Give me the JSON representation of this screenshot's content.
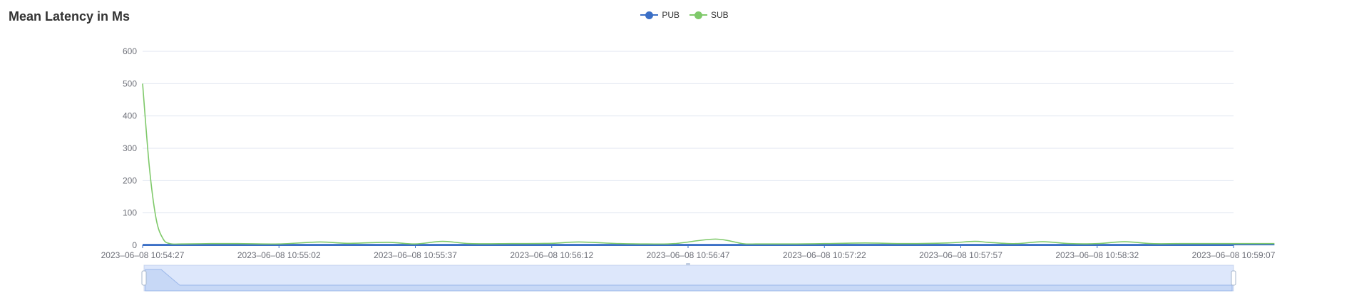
{
  "panel": {
    "title": "Mean Latency in Ms"
  },
  "colors": {
    "pub": "#3b6fc6",
    "sub": "#7fc96a",
    "grid": "#e0e6f1",
    "axis": "#3b6fc6"
  },
  "chart_data": {
    "type": "line",
    "ylim": [
      0,
      600
    ],
    "yticks": [
      0,
      100,
      200,
      300,
      400,
      500,
      600
    ],
    "x_tick_labels": [
      "2023–06–08 10:54:27",
      "2023–06–08 10:55:02",
      "2023–06–08 10:55:37",
      "2023–06–08 10:56:12",
      "2023–06–08 10:56:47",
      "2023–06–08 10:57:22",
      "2023–06–08 10:57:57",
      "2023–06–08 10:58:32",
      "2023–06–08 10:59:07"
    ],
    "legend_position": "top-center",
    "grid": true,
    "series": [
      {
        "name": "PUB",
        "x": [
          0,
          4.5,
          8.3
        ],
        "values": [
          2,
          2,
          2
        ]
      },
      {
        "name": "SUB",
        "x": [
          0,
          0.05,
          0.1,
          0.15,
          0.2,
          0.3,
          0.5,
          0.7,
          1.0,
          1.3,
          1.5,
          1.8,
          2.0,
          2.2,
          2.4,
          2.7,
          3.0,
          3.2,
          3.5,
          3.7,
          3.9,
          4.2,
          4.4,
          4.5,
          4.6,
          4.8,
          5.0,
          5.3,
          5.6,
          5.9,
          6.1,
          6.2,
          6.4,
          6.6,
          6.8,
          7.0,
          7.2,
          7.4,
          7.6,
          7.8,
          8.0,
          8.3
        ],
        "values": [
          500,
          240,
          80,
          20,
          5,
          4,
          5,
          5,
          4,
          10,
          6,
          9,
          4,
          12,
          5,
          5,
          6,
          10,
          5,
          4,
          5,
          19,
          5,
          4,
          4,
          4,
          5,
          7,
          5,
          7,
          12,
          9,
          5,
          11,
          5,
          5,
          11,
          5,
          5,
          5,
          5,
          5
        ]
      }
    ]
  }
}
